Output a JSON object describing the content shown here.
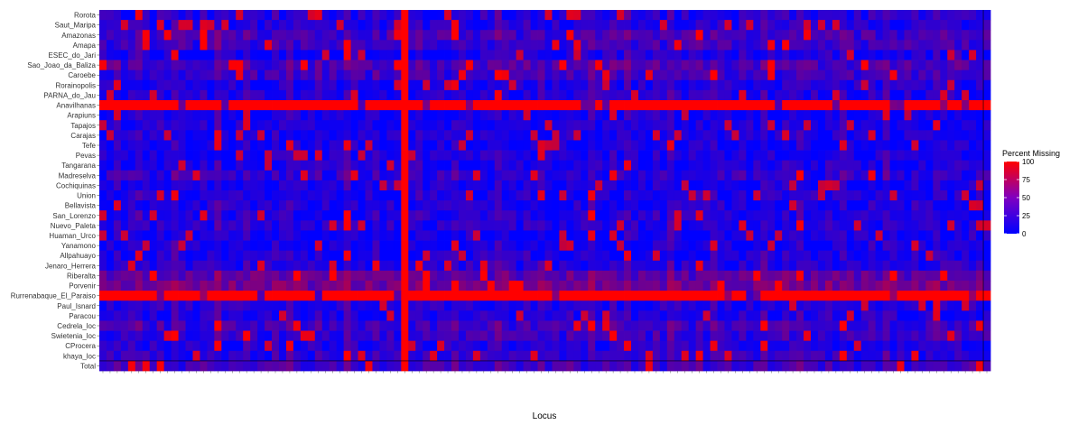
{
  "chart_data": {
    "type": "heatmap",
    "title": "",
    "xlabel": "Locus",
    "ylabel": "",
    "legend": {
      "title": "Percent Missing",
      "placement": "right",
      "ticks": [
        0,
        25,
        50,
        75,
        100
      ],
      "low_color": "#0000ff",
      "high_color": "#ff0000"
    },
    "rows": [
      {
        "name": "Rorota",
        "base": 18
      },
      {
        "name": "Saut_Maripa",
        "base": 15
      },
      {
        "name": "Amazonas",
        "base": 40
      },
      {
        "name": "Amapa",
        "base": 35
      },
      {
        "name": "ESEC_do_Jari",
        "base": 10
      },
      {
        "name": "Sao_Joao_da_Baliza",
        "base": 45
      },
      {
        "name": "Caroebe",
        "base": 35
      },
      {
        "name": "Rorainopolis",
        "base": 12
      },
      {
        "name": "PARNA_do_Jau",
        "base": 15
      },
      {
        "name": "Anavilhanas",
        "base": 95
      },
      {
        "name": "Arapiuns",
        "base": 3
      },
      {
        "name": "Tapajos",
        "base": 10
      },
      {
        "name": "Carajas",
        "base": 8
      },
      {
        "name": "Tefe",
        "base": 5
      },
      {
        "name": "Pevas",
        "base": 8
      },
      {
        "name": "Tangarana",
        "base": 10
      },
      {
        "name": "Madreselva",
        "base": 25
      },
      {
        "name": "Cochiquinas",
        "base": 5
      },
      {
        "name": "Union",
        "base": 10
      },
      {
        "name": "Bellavista",
        "base": 12
      },
      {
        "name": "San_Lorenzo",
        "base": 15
      },
      {
        "name": "Nuevo_Paleta",
        "base": 15
      },
      {
        "name": "Huaman_Urco",
        "base": 8
      },
      {
        "name": "Yanamono",
        "base": 5
      },
      {
        "name": "Allpahuayo",
        "base": 8
      },
      {
        "name": "Jenaro_Herrera",
        "base": 20
      },
      {
        "name": "Riberalta",
        "base": 60
      },
      {
        "name": "Porvenir",
        "base": 75
      },
      {
        "name": "Rurrenabaque_El_Paraiso",
        "base": 88
      },
      {
        "name": "Paul_Isnard",
        "base": 15
      },
      {
        "name": "Paracou",
        "base": 12
      },
      {
        "name": "Cedrela_loc",
        "base": 35
      },
      {
        "name": "Swietenia_loc",
        "base": 30
      },
      {
        "name": "CProcera",
        "base": 15
      },
      {
        "name": "khaya_loc",
        "base": 25
      },
      {
        "name": "Total",
        "base": 35
      }
    ],
    "column_count": 124,
    "column_bases": [
      5,
      8,
      30,
      10,
      15,
      45,
      12,
      8,
      20,
      10,
      55,
      15,
      10,
      5,
      25,
      8,
      50,
      12,
      8,
      10,
      35,
      15,
      10,
      8,
      30,
      12,
      45,
      15,
      10,
      8,
      25,
      12,
      10,
      8,
      55,
      15,
      10,
      12,
      30,
      8,
      15,
      10,
      100,
      10,
      35,
      12,
      8,
      20,
      10,
      45,
      12,
      15,
      8,
      25,
      10,
      50,
      15,
      10,
      8,
      30,
      12,
      40,
      15,
      10,
      8,
      25,
      12,
      10,
      50,
      15,
      8,
      30,
      10,
      45,
      12,
      15,
      8,
      25,
      10,
      55,
      15,
      10,
      8,
      30,
      12,
      40,
      15,
      10,
      8,
      25,
      12,
      10,
      45,
      15,
      8,
      30,
      10,
      50,
      12,
      15,
      8,
      25,
      10,
      40,
      15,
      10,
      8,
      30,
      12,
      45,
      15,
      10,
      8,
      25,
      12,
      10,
      35,
      15,
      8,
      30,
      10,
      20,
      12,
      15
    ],
    "column_labels": []
  }
}
